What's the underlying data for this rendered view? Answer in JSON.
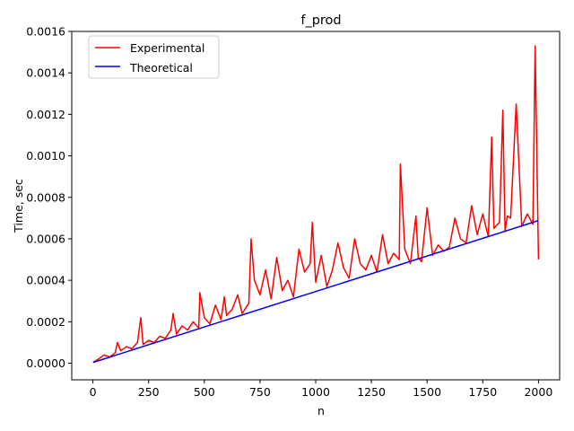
{
  "chart_data": {
    "type": "line",
    "title": "f_prod",
    "xlabel": "n",
    "ylabel": "Time, sec",
    "xlim": [
      -95,
      2095
    ],
    "ylim": [
      -8e-05,
      0.0016
    ],
    "xticks": [
      0,
      250,
      500,
      750,
      1000,
      1250,
      1500,
      1750,
      2000
    ],
    "yticks": [
      0.0,
      0.0002,
      0.0004,
      0.0006,
      0.0008,
      0.001,
      0.0012,
      0.0014,
      0.0016
    ],
    "xtick_labels": [
      "0",
      "250",
      "500",
      "750",
      "1000",
      "1250",
      "1500",
      "1750",
      "2000"
    ],
    "ytick_labels": [
      "0.0000",
      "0.0002",
      "0.0004",
      "0.0006",
      "0.0008",
      "0.0010",
      "0.0012",
      "0.0014",
      "0.0016"
    ],
    "grid": false,
    "legend_position": "top-left",
    "series": [
      {
        "name": "Experimental",
        "color": "#ff0000",
        "x": [
          1,
          25,
          50,
          75,
          100,
          110,
          125,
          150,
          175,
          200,
          215,
          225,
          250,
          275,
          300,
          325,
          350,
          360,
          375,
          400,
          425,
          450,
          475,
          480,
          500,
          525,
          550,
          575,
          590,
          600,
          625,
          650,
          670,
          700,
          710,
          725,
          750,
          775,
          800,
          825,
          850,
          875,
          900,
          925,
          950,
          975,
          985,
          1000,
          1025,
          1050,
          1075,
          1100,
          1125,
          1150,
          1175,
          1200,
          1225,
          1250,
          1275,
          1300,
          1325,
          1350,
          1375,
          1380,
          1400,
          1425,
          1450,
          1460,
          1475,
          1500,
          1525,
          1550,
          1575,
          1600,
          1625,
          1650,
          1675,
          1700,
          1725,
          1750,
          1775,
          1790,
          1800,
          1825,
          1840,
          1850,
          1860,
          1875,
          1900,
          1925,
          1950,
          1975,
          1985,
          2000
        ],
        "y": [
          5e-06,
          2e-05,
          4e-05,
          3e-05,
          5e-05,
          0.0001,
          6e-05,
          8e-05,
          7e-05,
          0.0001,
          0.00022,
          9e-05,
          0.00011,
          0.0001,
          0.00013,
          0.00012,
          0.00016,
          0.00024,
          0.00014,
          0.00018,
          0.00016,
          0.0002,
          0.00017,
          0.00034,
          0.00022,
          0.00019,
          0.00028,
          0.00021,
          0.00032,
          0.00023,
          0.00026,
          0.00033,
          0.00024,
          0.00029,
          0.0006,
          0.0004,
          0.00033,
          0.00045,
          0.00031,
          0.00051,
          0.00035,
          0.0004,
          0.00032,
          0.00055,
          0.00044,
          0.00048,
          0.00068,
          0.00039,
          0.00052,
          0.00037,
          0.00045,
          0.00058,
          0.00046,
          0.00041,
          0.0006,
          0.00048,
          0.00045,
          0.00052,
          0.00044,
          0.00062,
          0.00048,
          0.00053,
          0.0005,
          0.00096,
          0.00055,
          0.00048,
          0.00071,
          0.00051,
          0.00049,
          0.00075,
          0.00052,
          0.00057,
          0.00054,
          0.00056,
          0.0007,
          0.0006,
          0.00058,
          0.00076,
          0.00062,
          0.00072,
          0.00061,
          0.00109,
          0.00065,
          0.00068,
          0.00122,
          0.00064,
          0.00071,
          0.0007,
          0.00125,
          0.00066,
          0.00072,
          0.00067,
          0.00153,
          0.0005
        ]
      },
      {
        "name": "Theoretical",
        "color": "#0000ff",
        "x": [
          1,
          2000
        ],
        "y": [
          4e-06,
          0.000688
        ]
      }
    ]
  }
}
